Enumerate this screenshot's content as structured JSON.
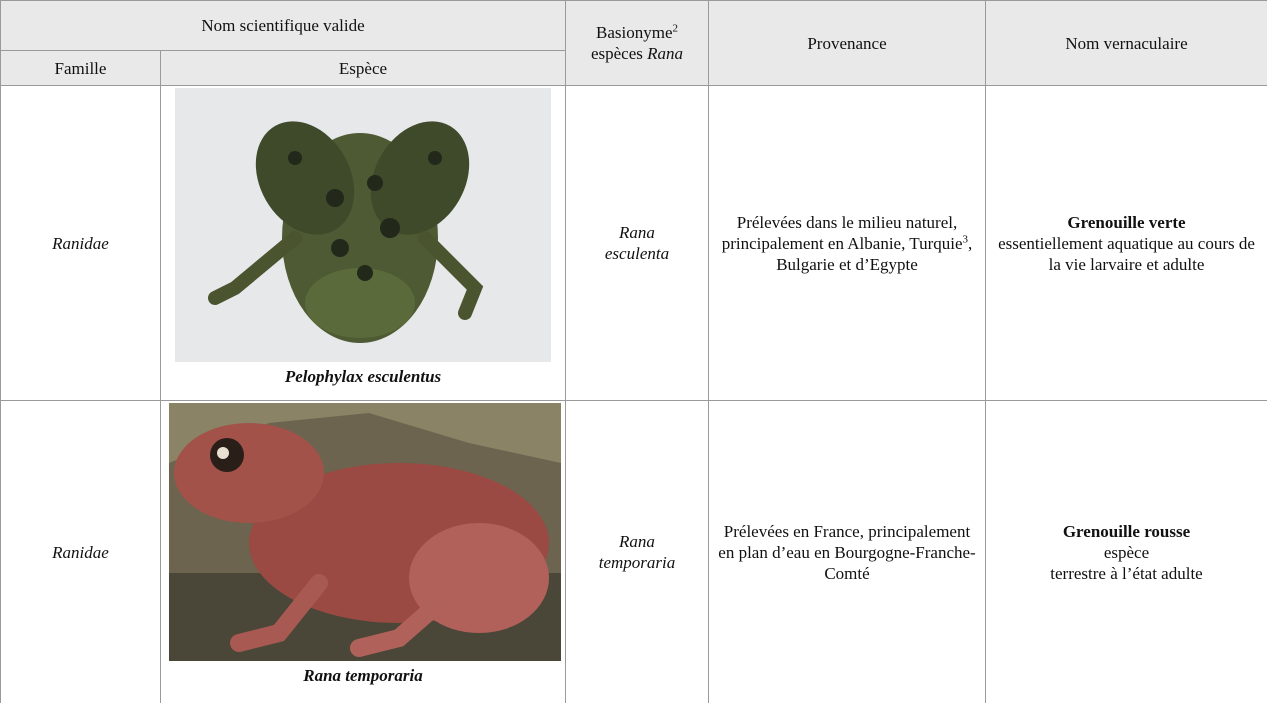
{
  "header": {
    "scientific_name": "Nom scientifique valide",
    "family": "Famille",
    "species": "Espèce",
    "basionym": {
      "text": "Basionyme",
      "note": "2",
      "line2": "espèces",
      "line2_italic": "Rana"
    },
    "provenance": "Provenance",
    "vernacular": "Nom vernaculaire"
  },
  "rows": [
    {
      "family": "Ranidae",
      "species": "Pelophylax esculentus",
      "basionym": [
        "Rana",
        "esculenta"
      ],
      "provenance": {
        "before": "Prélevées dans le milieu naturel, principalement en Albanie, Turquie",
        "note": "3",
        "after": ", Bulgarie et d’Egypte"
      },
      "vernacular": {
        "name": "Grenouille verte",
        "description": [
          "essentiellement aquatique au cours de la vie larvaire et adulte"
        ]
      }
    },
    {
      "family": "Ranidae",
      "species": "Rana temporaria",
      "basionym": [
        "Rana",
        "temporaria"
      ],
      "provenance": {
        "before": "Prélevées en France, principalement en plan d’eau en Bourgogne-Franche-Comté"
      },
      "vernacular": {
        "name": "Grenouille rousse",
        "description": [
          "espèce",
          "terrestre à l’état adulte"
        ]
      }
    }
  ]
}
